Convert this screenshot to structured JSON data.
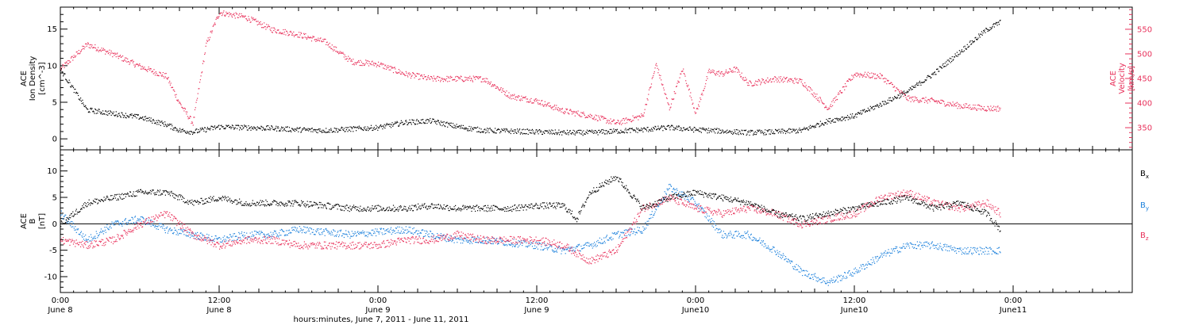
{
  "chart_data": [
    {
      "type": "scatter",
      "panel": "top",
      "ylabel_left": [
        "ACE",
        "Ion Density",
        "[cm^-3]"
      ],
      "ylabel_right": [
        "ACE",
        "Velocity",
        "[km/s]"
      ],
      "ylim_left": [
        -1.5,
        18
      ],
      "ylim_right": [
        305,
        595
      ],
      "yticks_left": [
        0,
        5,
        10,
        15
      ],
      "yticks_right": [
        350,
        400,
        450,
        500,
        550
      ],
      "colors": {
        "density": "#000000",
        "velocity": "#e8305a"
      },
      "series": [
        {
          "axis": "left",
          "color": "#000000",
          "x_hours": [
            0,
            2,
            4,
            6,
            8,
            9,
            10,
            12,
            14,
            16,
            18,
            20,
            22,
            24,
            26,
            28,
            30,
            32,
            34,
            36,
            38,
            40,
            42,
            44,
            46,
            48,
            50,
            52,
            54,
            56,
            58,
            60,
            62,
            64,
            66,
            68,
            70,
            71
          ],
          "values": [
            9.5,
            4.0,
            3.5,
            3.0,
            2.0,
            1.2,
            1.0,
            1.7,
            1.6,
            1.5,
            1.3,
            1.2,
            1.4,
            1.6,
            2.3,
            2.5,
            1.7,
            1.2,
            1.1,
            1.0,
            0.9,
            0.9,
            1.1,
            1.3,
            1.6,
            1.3,
            1.1,
            0.9,
            1.0,
            1.2,
            2.5,
            3.2,
            4.8,
            6.5,
            9.0,
            12.0,
            15.0,
            16.0
          ]
        },
        {
          "axis": "right",
          "color": "#e8305a",
          "x_hours": [
            0,
            2,
            4,
            6,
            8,
            9,
            10,
            11,
            12,
            14,
            16,
            18,
            20,
            22,
            24,
            26,
            28,
            30,
            32,
            34,
            36,
            38,
            40,
            42,
            44,
            45,
            46,
            47,
            48,
            49,
            50,
            51,
            52,
            54,
            56,
            58,
            60,
            62,
            64,
            66,
            68,
            70,
            71
          ],
          "values": [
            470,
            520,
            500,
            475,
            455,
            400,
            360,
            520,
            585,
            575,
            550,
            540,
            525,
            485,
            480,
            460,
            450,
            450,
            450,
            415,
            405,
            385,
            375,
            360,
            375,
            480,
            390,
            470,
            380,
            465,
            460,
            470,
            440,
            450,
            445,
            390,
            460,
            455,
            410,
            405,
            395,
            390,
            390
          ]
        }
      ]
    },
    {
      "type": "scatter",
      "panel": "bottom",
      "ylabel": [
        "ACE",
        "B",
        "[nT]"
      ],
      "ylim": [
        -13,
        14
      ],
      "yticks": [
        -10,
        -5,
        0,
        5,
        10
      ],
      "zero_line": true,
      "legend_placement": "right",
      "series": [
        {
          "name": "Bx",
          "color": "#000000",
          "x_hours": [
            0,
            2,
            4,
            6,
            8,
            10,
            12,
            14,
            16,
            18,
            20,
            22,
            24,
            26,
            28,
            30,
            32,
            34,
            36,
            38,
            39,
            40,
            42,
            44,
            46,
            48,
            50,
            52,
            54,
            56,
            58,
            60,
            62,
            64,
            66,
            68,
            70,
            71
          ],
          "values": [
            0,
            4,
            5,
            6,
            6,
            4,
            5,
            4,
            4,
            4,
            3.5,
            3,
            3,
            3,
            3.5,
            3,
            3,
            3,
            3.5,
            3.5,
            1,
            6,
            9,
            3,
            5,
            6,
            5,
            4,
            2,
            1,
            2,
            3,
            4,
            5,
            3,
            4,
            2,
            -1
          ]
        },
        {
          "name": "By",
          "color": "#1e82dc",
          "x_hours": [
            0,
            2,
            4,
            6,
            8,
            10,
            12,
            14,
            16,
            18,
            20,
            22,
            24,
            26,
            28,
            30,
            32,
            34,
            36,
            38,
            40,
            42,
            44,
            46,
            48,
            50,
            52,
            54,
            56,
            58,
            60,
            62,
            64,
            66,
            68,
            70,
            71
          ],
          "values": [
            2,
            -3,
            0,
            1,
            -1,
            -2,
            -3,
            -2,
            -2,
            -1,
            -1.5,
            -2,
            -1.5,
            -1,
            -2,
            -3,
            -3,
            -3.5,
            -4,
            -5,
            -4,
            -2,
            -1,
            7,
            4,
            -2,
            -2,
            -5,
            -9,
            -11,
            -9,
            -6,
            -4,
            -4,
            -5,
            -5,
            -5
          ]
        },
        {
          "name": "Bz",
          "color": "#e8305a",
          "x_hours": [
            0,
            2,
            4,
            6,
            8,
            10,
            12,
            14,
            16,
            18,
            20,
            22,
            24,
            26,
            28,
            30,
            32,
            34,
            36,
            38,
            40,
            42,
            44,
            46,
            48,
            50,
            52,
            54,
            56,
            58,
            60,
            62,
            64,
            66,
            68,
            70,
            71
          ],
          "values": [
            -3,
            -4,
            -3,
            0,
            2,
            -2,
            -4,
            -3,
            -3,
            -4,
            -4,
            -4,
            -4,
            -3,
            -3,
            -2,
            -3,
            -3,
            -3,
            -4,
            -7,
            -5,
            3,
            5,
            3,
            2,
            3,
            2,
            0,
            1,
            2,
            5,
            6,
            4,
            3,
            4,
            2
          ]
        }
      ]
    }
  ],
  "legend": {
    "bx": "B",
    "bx_sub": "x",
    "by": "B",
    "by_sub": "y",
    "bz": "B",
    "bz_sub": "z"
  },
  "x_axis": {
    "xlim_hours": [
      0,
      81
    ],
    "title": "hours:minutes,  June  7, 2011 - June 11, 2011",
    "ticks": [
      {
        "h": 0,
        "time": "0:00",
        "date": "June 8"
      },
      {
        "h": 12,
        "time": "12:00",
        "date": "June 8"
      },
      {
        "h": 24,
        "time": "0:00",
        "date": "June 9"
      },
      {
        "h": 36,
        "time": "12:00",
        "date": "June 9"
      },
      {
        "h": 48,
        "time": "0:00",
        "date": "June10"
      },
      {
        "h": 60,
        "time": "12:00",
        "date": "June10"
      },
      {
        "h": 72,
        "time": "0:00",
        "date": "June11"
      }
    ]
  }
}
